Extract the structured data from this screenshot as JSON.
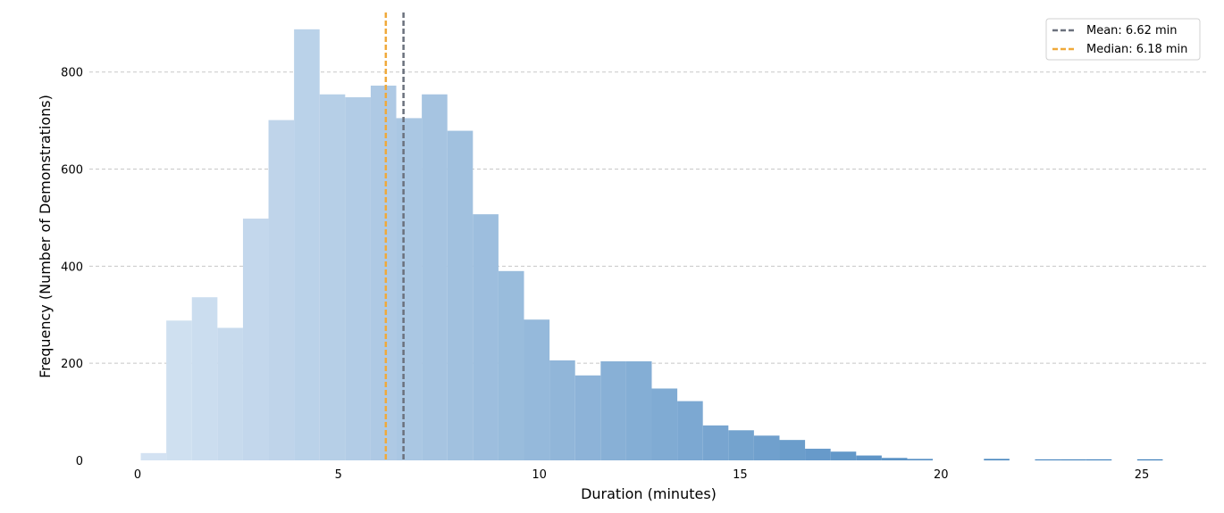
{
  "chart_data": {
    "type": "bar",
    "subtype": "histogram",
    "xlabel": "Duration (minutes)",
    "ylabel": "Frequency (Number of Demonstrations)",
    "xlim": [
      -1.2,
      26.6
    ],
    "ylim": [
      0,
      930
    ],
    "x_ticks": [
      0,
      5,
      10,
      15,
      20,
      25
    ],
    "y_ticks": [
      0,
      200,
      400,
      600,
      800
    ],
    "grid": "horizontal dashed",
    "legend_position": "top-right",
    "bin_width": 0.636,
    "bin_starts": [
      0.08,
      0.716,
      1.352,
      1.988,
      2.624,
      3.26,
      3.896,
      4.532,
      5.168,
      5.804,
      6.44,
      7.076,
      7.712,
      8.348,
      8.984,
      9.62,
      10.256,
      10.892,
      11.528,
      12.164,
      12.8,
      13.436,
      14.072,
      14.708,
      15.344,
      15.98,
      16.616,
      17.252,
      17.888,
      18.524,
      19.16,
      19.796,
      20.432,
      21.068,
      21.704,
      22.34,
      22.976,
      23.612,
      24.248,
      24.884
    ],
    "values": [
      15,
      288,
      336,
      273,
      498,
      701,
      888,
      754,
      748,
      772,
      705,
      754,
      679,
      507,
      390,
      290,
      206,
      175,
      204,
      204,
      148,
      122,
      72,
      62,
      51,
      42,
      24,
      18,
      10,
      5,
      3,
      0,
      0,
      3,
      0,
      2,
      2,
      2,
      0,
      2
    ],
    "colormap": {
      "start": "#d6e4f3",
      "end": "#2f75b5"
    },
    "reference_lines": [
      {
        "label": "Mean: 6.62 min",
        "x": 6.62,
        "color": "#6b717d",
        "style": "dashed"
      },
      {
        "label": "Median: 6.18 min",
        "x": 6.18,
        "color": "#f0a93a",
        "style": "dashed"
      }
    ]
  }
}
